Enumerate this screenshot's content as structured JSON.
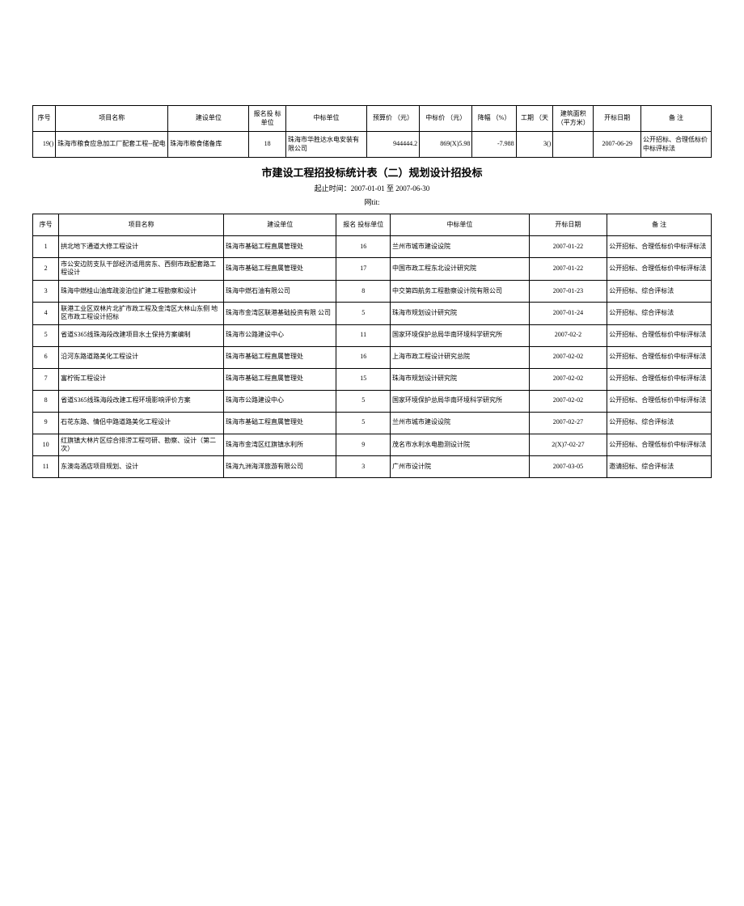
{
  "table1": {
    "headers": [
      "序号",
      "项目名称",
      "建设单位",
      "报名投 标单位",
      "中标单位",
      "预算价 （元）",
      "中标价 （元）",
      "降幅 （%）",
      "工期 （天",
      "建筑面积 （平方米）",
      "开标日期",
      "备 注"
    ],
    "row": {
      "seq": "19()",
      "project": "珠海市粮食应急加工厂配套工程--配电",
      "builder": "珠海市粮食储备库",
      "bidders": "18",
      "winner": "珠海市华胜达水电安装有限公司",
      "budget": "944444.2",
      "winprice": "869(X)5.98",
      "drop": "-7.988",
      "period": "3()",
      "area": "",
      "date": "2007-06-29",
      "remark": "公开招标、合理低标价中标评标法"
    }
  },
  "title": "市建设工程招投标统计表（二）规划设计招投标",
  "subtitle": "起止时间：2007-01-01 至 2007-06-30",
  "subtitle2": "网tit:",
  "table2": {
    "headers": [
      "序号",
      "项目名称",
      "建设单位",
      "报名 投标单位",
      "中标单位",
      "开标日期",
      "备 注"
    ],
    "rows": [
      {
        "seq": "1",
        "project": "拱北地下通道大修工程设计",
        "builder": "珠海市基础工程直属管理处",
        "bidders": "16",
        "winner": "兰州市城市建设设院",
        "date": "2007-01-22",
        "remark": "公开招标、合理低标价中标评标法"
      },
      {
        "seq": "2",
        "project": "市公安边防支队干部经济适用房东、西侧市政配套路工程设计",
        "builder": "珠海市基础工程直属管理处",
        "bidders": "17",
        "winner": "中国市政工程东北设计研究院",
        "date": "2007-01-22",
        "remark": "公开招标、合理低标价中标评标法"
      },
      {
        "seq": "3",
        "project": "珠海中燃桂山油库疏浚泊位扩建工程勘察和设计",
        "builder": "珠海中燃石油有限公司",
        "bidders": "8",
        "winner": "中交第四航务工程勘察设计院有限公司",
        "date": "2007-01-23",
        "remark": "公开招标、综合评标法"
      },
      {
        "seq": "4",
        "project": "联港工业区双林片北扩市政工程及金湾区大林山东侧 地区市政工程设计招标",
        "builder": "珠海市金湾区联港基础投资有限 公司",
        "bidders": "5",
        "winner": "珠海市规划设计研究院",
        "date": "2007-01-24",
        "remark": "公开招标、综合评标法"
      },
      {
        "seq": "5",
        "project": "省道S365线珠海段改建项目水土保持方案编制",
        "builder": "珠海市公路建设中心",
        "bidders": "11",
        "winner": "国家环境保护总局华南环境科学研究所",
        "date": "2007-02-2",
        "remark": "公开招标、合理低标价中标评标法"
      },
      {
        "seq": "6",
        "project": "沿河东路道路美化工程设计",
        "builder": "珠海市基础工程直属管理处",
        "bidders": "16",
        "winner": "上海市政工程设计研究总院",
        "date": "2007-02-02",
        "remark": "公开招标、合理低标价中标评标法"
      },
      {
        "seq": "7",
        "project": "富柠街工程设计",
        "builder": "珠海市基础工程直属管理处",
        "bidders": "15",
        "winner": "珠海市规划设计研究院",
        "date": "2007-02-02",
        "remark": "公开招标、合理低标价中标评标法"
      },
      {
        "seq": "8",
        "project": "省道S365线珠海段改建工程环境影响评价方案",
        "builder": "珠海市公路建设中心",
        "bidders": "5",
        "winner": "国家环境保护总局华南环境科学研究所",
        "date": "2007-02-02",
        "remark": "公开招标、合理低标价中标评标法"
      },
      {
        "seq": "9",
        "project": "石花东路、情侣中路道路美化工程设计",
        "builder": "珠海市基础工程直属管理处",
        "bidders": "5",
        "winner": "兰州市城市建设设院",
        "date": "2007-02-27",
        "remark": "公开招标、综合评标法"
      },
      {
        "seq": "10",
        "project": "红旗镇大林片区综合排涝工程可研、勘察、设计（第二次）",
        "builder": "珠海市金湾区红旗镇水利所",
        "bidders": "9",
        "winner": "茂名市水利水电勘测设计院",
        "date": "2(X)7-02-27",
        "remark": "公开招标、合理低标价中标评标法"
      },
      {
        "seq": "11",
        "project": "东澳岛酒店项目规划、设计",
        "builder": "珠海九洲海洋旅游有限公司",
        "bidders": "3",
        "winner": "广州市设计院",
        "date": "2007-03-05",
        "remark": "邀请招标、综合评标法"
      }
    ]
  }
}
